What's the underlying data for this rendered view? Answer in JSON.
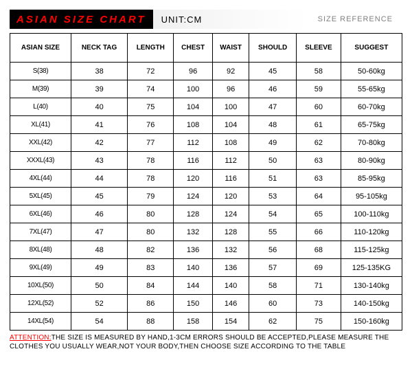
{
  "header": {
    "title": "ASIAN SIZE CHART",
    "unit": "UNIT:CM",
    "size_ref": "SIZE REFERENCE",
    "title_bg": "#000000",
    "title_color": "#ff0000"
  },
  "table": {
    "columns": [
      "ASIAN SIZE",
      "NECK TAG",
      "LENGTH",
      "CHEST",
      "WAIST",
      "SHOULD",
      "SLEEVE",
      "SUGGEST"
    ],
    "rows": [
      [
        "S(38)",
        "38",
        "72",
        "96",
        "92",
        "45",
        "58",
        "50-60kg"
      ],
      [
        "M(39)",
        "39",
        "74",
        "100",
        "96",
        "46",
        "59",
        "55-65kg"
      ],
      [
        "L(40)",
        "40",
        "75",
        "104",
        "100",
        "47",
        "60",
        "60-70kg"
      ],
      [
        "XL(41)",
        "41",
        "76",
        "108",
        "104",
        "48",
        "61",
        "65-75kg"
      ],
      [
        "XXL(42)",
        "42",
        "77",
        "112",
        "108",
        "49",
        "62",
        "70-80kg"
      ],
      [
        "XXXL(43)",
        "43",
        "78",
        "116",
        "112",
        "50",
        "63",
        "80-90kg"
      ],
      [
        "4XL(44)",
        "44",
        "78",
        "120",
        "116",
        "51",
        "63",
        "85-95kg"
      ],
      [
        "5XL(45)",
        "45",
        "79",
        "124",
        "120",
        "53",
        "64",
        "95-105kg"
      ],
      [
        "6XL(46)",
        "46",
        "80",
        "128",
        "124",
        "54",
        "65",
        "100-110kg"
      ],
      [
        "7XL(47)",
        "47",
        "80",
        "132",
        "128",
        "55",
        "66",
        "110-120kg"
      ],
      [
        "8XL(48)",
        "48",
        "82",
        "136",
        "132",
        "56",
        "68",
        "115-125kg"
      ],
      [
        "9XL(49)",
        "49",
        "83",
        "140",
        "136",
        "57",
        "69",
        "125-135KG"
      ],
      [
        "10XL(50)",
        "50",
        "84",
        "144",
        "140",
        "58",
        "71",
        "130-140kg"
      ],
      [
        "12XL(52)",
        "52",
        "86",
        "150",
        "146",
        "60",
        "73",
        "140-150kg"
      ],
      [
        "14XL(54)",
        "54",
        "88",
        "158",
        "154",
        "62",
        "75",
        "150-160kg"
      ]
    ],
    "border_color": "#000000",
    "header_fontsize": 10,
    "cell_fontsize": 11
  },
  "footer": {
    "attention_label": "ATTENTION:",
    "attention_text": "THE SIZE IS MEASURED BY HAND,1-3CM ERRORS SHOULD BE ACCEPTED,PLEASE MEASURE THE CLOTHES YOU USUALLY WEAR,NOT YOUR BODY,THEN CHOOSE SIZE ACCORDING TO THE TABLE",
    "attention_color": "#ff0000"
  }
}
